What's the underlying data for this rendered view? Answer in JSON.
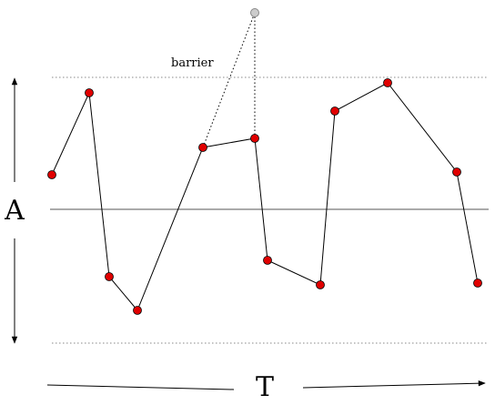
{
  "labels": {
    "barrier": "barrier",
    "amplitude_axis": "A",
    "time_axis": "T"
  },
  "colors": {
    "point_fill": "#e00000",
    "barrier_point_fill": "#cccccc",
    "line": "#000000",
    "dotted": "#888888"
  },
  "series": {
    "description_free": true,
    "point_count": 13
  }
}
